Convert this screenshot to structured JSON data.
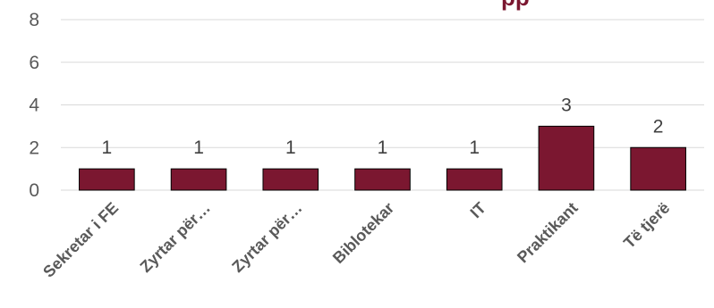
{
  "chart_data": {
    "type": "bar",
    "title_fragment": "pp",
    "categories": [
      "Sekretar i FE",
      "Zyrtar për…",
      "Zyrtar për…",
      "Biblotekar",
      "IT",
      "Praktikant",
      "Të tjerë"
    ],
    "values": [
      1,
      1,
      1,
      1,
      1,
      3,
      2
    ],
    "data_labels": [
      "1",
      "1",
      "1",
      "1",
      "1",
      "3",
      "2"
    ],
    "y_ticks": [
      "0",
      "2",
      "4",
      "6",
      "8"
    ],
    "ylim": [
      0,
      8
    ],
    "grid": true,
    "legend": "none",
    "bar_color": "#7b1730",
    "bar_outline_color": "#000000",
    "grid_color": "#d9d9d9"
  }
}
